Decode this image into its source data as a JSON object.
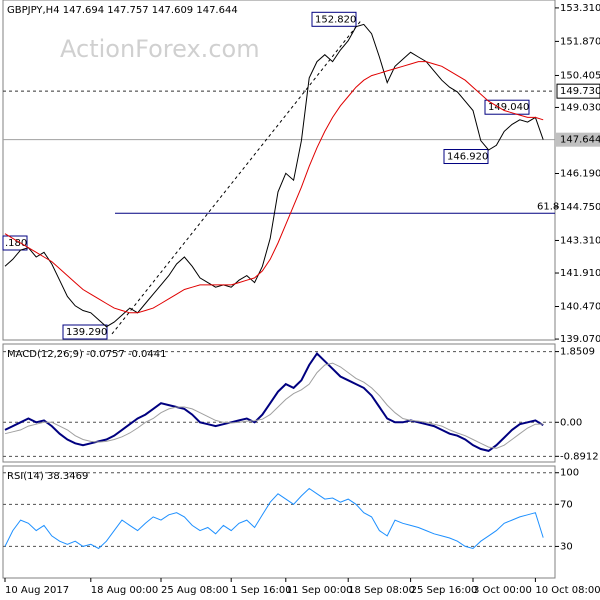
{
  "chart_data": [
    {
      "type": "line",
      "title": "GBPJPY,H4 147.694 147.757 147.609 147.644",
      "watermark": "ActionForex.com",
      "series": [
        {
          "color": "#000000",
          "values": [
            142.2,
            142.5,
            142.9,
            143.0,
            142.6,
            142.8,
            142.3,
            141.6,
            140.9,
            140.5,
            140.3,
            140.2,
            139.9,
            139.6,
            139.8,
            140.1,
            140.4,
            140.2,
            140.6,
            141.0,
            141.4,
            141.8,
            142.3,
            142.6,
            142.2,
            141.7,
            141.5,
            141.3,
            141.4,
            141.3,
            141.6,
            141.8,
            141.5,
            142.2,
            143.4,
            145.4,
            146.2,
            145.9,
            147.6,
            150.3,
            151.0,
            151.3,
            151.0,
            151.5,
            151.9,
            152.5,
            152.6,
            152.2,
            151.2,
            150.1,
            150.8,
            151.1,
            151.4,
            151.2,
            151.0,
            150.6,
            150.2,
            149.9,
            149.7,
            149.3,
            148.9,
            147.6,
            147.2,
            147.4,
            148.0,
            148.3,
            148.5,
            148.4,
            148.6,
            147.644
          ]
        },
        {
          "color": "#e00000",
          "values": [
            143.6,
            143.4,
            143.2,
            143.0,
            142.8,
            142.6,
            142.4,
            142.1,
            141.8,
            141.5,
            141.2,
            141.0,
            140.8,
            140.6,
            140.4,
            140.3,
            140.2,
            140.2,
            140.3,
            140.4,
            140.6,
            140.8,
            141.0,
            141.2,
            141.3,
            141.4,
            141.4,
            141.4,
            141.4,
            141.4,
            141.5,
            141.6,
            141.7,
            142.0,
            142.5,
            143.2,
            144.0,
            144.8,
            145.6,
            146.5,
            147.3,
            148.0,
            148.6,
            149.1,
            149.5,
            149.9,
            150.2,
            150.4,
            150.5,
            150.6,
            150.7,
            150.8,
            150.9,
            151.0,
            151.0,
            150.9,
            150.8,
            150.6,
            150.4,
            150.2,
            149.9,
            149.6,
            149.3,
            149.1,
            148.9,
            148.8,
            148.7,
            148.6,
            148.6,
            148.5
          ]
        }
      ],
      "ylim": [
        139.03,
        153.65
      ],
      "yticks": [
        {
          "value": 153.31,
          "label": "153.310"
        },
        {
          "value": 151.87,
          "label": "151.870"
        },
        {
          "value": 150.405,
          "label": "150.405"
        },
        {
          "value": 149.03,
          "label": "149.030"
        },
        {
          "value": 146.19,
          "label": "146.190"
        },
        {
          "value": 144.75,
          "label": "144.750"
        },
        {
          "value": 143.31,
          "label": "143.310"
        },
        {
          "value": 141.91,
          "label": "141.910"
        },
        {
          "value": 140.47,
          "label": "140.470"
        },
        {
          "value": 139.07,
          "label": "139.070"
        }
      ],
      "current_price": {
        "value": 147.644,
        "label": "147.644"
      },
      "level": {
        "value": 149.73,
        "label": "149.730"
      },
      "fib": {
        "value": 144.48,
        "label": "61.8"
      },
      "annotations": [
        {
          "value": 152.82,
          "label": "152.820"
        },
        {
          "value": 149.04,
          "label": "149.040"
        },
        {
          "value": 146.92,
          "label": "146.920"
        },
        {
          "value": 139.29,
          "label": "139.290"
        }
      ],
      "left_label": ".180"
    },
    {
      "type": "line",
      "title": "MACD(12,26,9) -0.0757 -0.0441",
      "series": [
        {
          "color": "#000080",
          "values": [
            -0.2,
            -0.1,
            0.0,
            0.1,
            0.0,
            0.05,
            -0.1,
            -0.3,
            -0.45,
            -0.55,
            -0.6,
            -0.55,
            -0.5,
            -0.45,
            -0.35,
            -0.2,
            -0.05,
            0.1,
            0.2,
            0.35,
            0.5,
            0.45,
            0.4,
            0.35,
            0.2,
            0.0,
            -0.05,
            -0.1,
            -0.05,
            0.0,
            0.05,
            0.1,
            0.0,
            0.2,
            0.5,
            0.8,
            1.0,
            0.9,
            1.1,
            1.5,
            1.8,
            1.6,
            1.4,
            1.2,
            1.1,
            1.0,
            0.9,
            0.7,
            0.4,
            0.1,
            0.0,
            0.0,
            0.05,
            0.0,
            -0.05,
            -0.1,
            -0.2,
            -0.3,
            -0.35,
            -0.45,
            -0.6,
            -0.7,
            -0.75,
            -0.6,
            -0.4,
            -0.2,
            -0.05,
            0.0,
            0.05,
            -0.0757
          ]
        },
        {
          "color": "#a0a0a0",
          "values": [
            -0.3,
            -0.25,
            -0.2,
            -0.1,
            -0.05,
            0.0,
            0.0,
            -0.1,
            -0.2,
            -0.35,
            -0.45,
            -0.5,
            -0.52,
            -0.5,
            -0.45,
            -0.38,
            -0.28,
            -0.15,
            0.0,
            0.1,
            0.25,
            0.35,
            0.4,
            0.4,
            0.35,
            0.25,
            0.15,
            0.05,
            0.0,
            -0.02,
            0.0,
            0.03,
            0.04,
            0.08,
            0.2,
            0.4,
            0.6,
            0.75,
            0.85,
            1.0,
            1.3,
            1.5,
            1.55,
            1.45,
            1.3,
            1.15,
            1.05,
            0.9,
            0.7,
            0.45,
            0.25,
            0.1,
            0.05,
            0.03,
            0.0,
            -0.05,
            -0.1,
            -0.2,
            -0.28,
            -0.35,
            -0.45,
            -0.55,
            -0.65,
            -0.68,
            -0.6,
            -0.45,
            -0.3,
            -0.15,
            -0.05,
            -0.0441
          ]
        }
      ],
      "ylim": [
        -1.04,
        2.05
      ],
      "yticks": [
        1.8509,
        {
          "value": 0,
          "label": "0.00"
        },
        -0.8912
      ]
    },
    {
      "type": "line",
      "title": "RSI(14) 38.3469",
      "categories": [
        "10 Aug 2017",
        null,
        null,
        null,
        null,
        null,
        null,
        null,
        null,
        null,
        null,
        "18 Aug 00:00",
        null,
        null,
        null,
        null,
        null,
        null,
        null,
        null,
        "25 Aug 08:00",
        null,
        null,
        null,
        null,
        null,
        null,
        null,
        null,
        "1 Sep 16:00",
        null,
        null,
        null,
        null,
        null,
        null,
        "11 Sep 00:00",
        null,
        null,
        null,
        null,
        null,
        null,
        null,
        "18 Sep 08:00",
        null,
        null,
        null,
        null,
        null,
        null,
        null,
        "25 Sep 16:00",
        null,
        null,
        null,
        null,
        null,
        null,
        null,
        "3 Oct 00:00",
        null,
        null,
        null,
        null,
        null,
        null,
        null,
        "10 Oct 08:00",
        null
      ],
      "series": [
        {
          "color": "#1e90ff",
          "values": [
            30,
            45,
            55,
            52,
            45,
            50,
            40,
            35,
            32,
            35,
            30,
            32,
            28,
            35,
            45,
            55,
            50,
            45,
            52,
            58,
            55,
            60,
            62,
            58,
            50,
            45,
            48,
            42,
            50,
            45,
            52,
            55,
            48,
            60,
            72,
            80,
            75,
            70,
            78,
            85,
            80,
            75,
            76,
            72,
            75,
            70,
            62,
            58,
            45,
            40,
            55,
            52,
            50,
            48,
            45,
            42,
            40,
            38,
            35,
            30,
            28,
            35,
            40,
            45,
            52,
            55,
            58,
            60,
            62,
            38.3469
          ]
        }
      ],
      "ylim": [
        0,
        106.4
      ],
      "yticks": [
        100,
        70,
        30
      ]
    }
  ]
}
